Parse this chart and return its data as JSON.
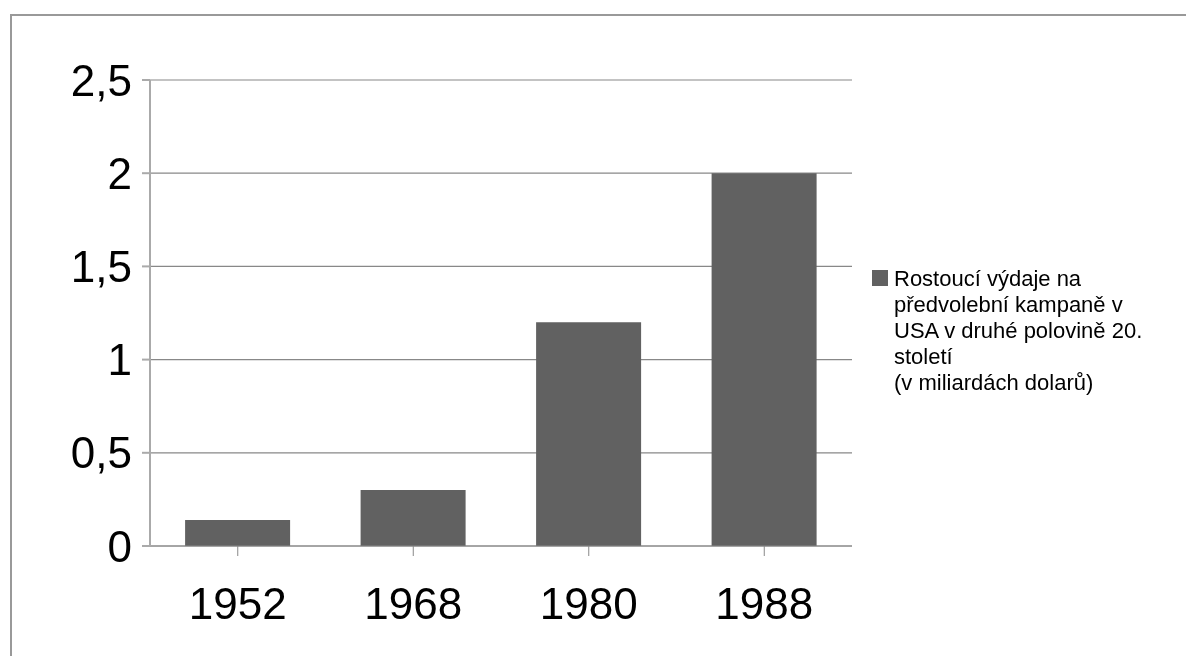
{
  "chart_data": {
    "type": "bar",
    "categories": [
      "1952",
      "1968",
      "1980",
      "1988"
    ],
    "series": [
      {
        "name": "Rostoucí výdaje na předvolební kampaně v USA v druhé polovině 20. století\n(v miliardách dolarů)",
        "color": "#616161",
        "values": [
          0.14,
          0.3,
          1.2,
          2.0
        ]
      }
    ],
    "ylim": [
      0,
      2.5
    ],
    "yticks": [
      0,
      {
        "value": 0.5,
        "label": "0,5"
      },
      1,
      {
        "value": 1.5,
        "label": "1,5"
      },
      2,
      {
        "value": 2.5,
        "label": "2,5"
      }
    ],
    "grid": "y",
    "legend": "right"
  }
}
